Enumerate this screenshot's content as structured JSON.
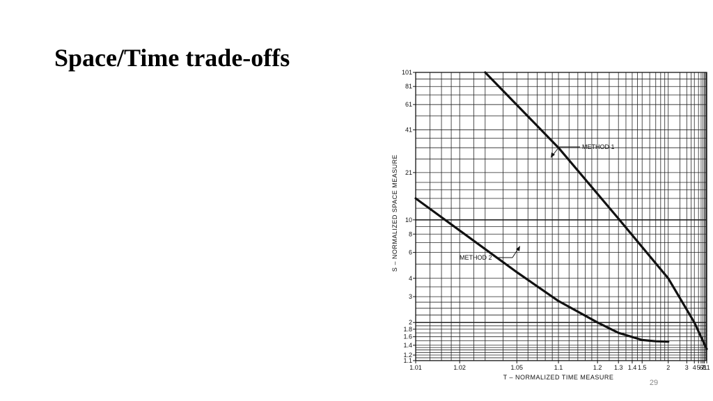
{
  "slide": {
    "title": "Space/Time trade-offs",
    "page_number": "29"
  },
  "colors": {
    "ink": "#111111",
    "background": "#ffffff",
    "page_number": "#888888"
  },
  "chart_data": {
    "type": "line",
    "xscale": "log-reciprocal",
    "yscale": "log",
    "grid": true,
    "xlabel": "T – NORMALIZED TIME MEASURE",
    "ylabel": "S – NORMALIZED SPACE MEASURE",
    "xlim": [
      1.01,
      11
    ],
    "ylim": [
      1.1,
      101
    ],
    "x_ticks": [
      {
        "value": 1.01,
        "label": "1.01"
      },
      {
        "value": 1.02,
        "label": "1.02"
      },
      {
        "value": 1.05,
        "label": "1.05"
      },
      {
        "value": 1.1,
        "label": "1.1"
      },
      {
        "value": 1.2,
        "label": "1.2"
      },
      {
        "value": 1.3,
        "label": "1.3"
      },
      {
        "value": 1.4,
        "label": "1.4"
      },
      {
        "value": 1.5,
        "label": "1.5"
      },
      {
        "value": 2,
        "label": "2"
      },
      {
        "value": 3,
        "label": "3"
      },
      {
        "value": 4,
        "label": "4"
      },
      {
        "value": 5,
        "label": "5"
      },
      {
        "value": 6,
        "label": "6"
      },
      {
        "value": 7,
        "label": "7"
      },
      {
        "value": 8,
        "label": "8"
      },
      {
        "value": 11,
        "label": "11"
      }
    ],
    "y_ticks": [
      {
        "value": 1.1,
        "label": "1.1"
      },
      {
        "value": 1.2,
        "label": "1.2"
      },
      {
        "value": 1.4,
        "label": "1.4"
      },
      {
        "value": 1.6,
        "label": "1.6"
      },
      {
        "value": 1.8,
        "label": "1.8"
      },
      {
        "value": 2,
        "label": "2"
      },
      {
        "value": 3,
        "label": "3"
      },
      {
        "value": 4,
        "label": "4"
      },
      {
        "value": 6,
        "label": "6"
      },
      {
        "value": 8,
        "label": "8"
      },
      {
        "value": 10,
        "label": "10"
      },
      {
        "value": 21,
        "label": "21"
      },
      {
        "value": 41,
        "label": "41"
      },
      {
        "value": 61,
        "label": "61"
      },
      {
        "value": 81,
        "label": "81"
      },
      {
        "value": 101,
        "label": "101"
      }
    ],
    "x_grid": [
      1.01,
      1.0125,
      1.015,
      1.0175,
      1.02,
      1.025,
      1.03,
      1.04,
      1.05,
      1.06,
      1.07,
      1.08,
      1.09,
      1.1,
      1.12,
      1.14,
      1.16,
      1.18,
      1.2,
      1.25,
      1.3,
      1.35,
      1.4,
      1.45,
      1.5,
      1.6,
      1.7,
      1.8,
      1.9,
      2,
      2.5,
      3,
      3.5,
      4,
      5,
      6,
      7,
      8,
      9,
      10,
      11
    ],
    "y_grid": [
      1.1,
      1.15,
      1.2,
      1.25,
      1.3,
      1.35,
      1.4,
      1.5,
      1.6,
      1.7,
      1.8,
      1.9,
      2,
      2.25,
      2.5,
      2.75,
      3,
      3.5,
      4,
      5,
      6,
      7,
      8,
      9,
      10,
      12,
      14,
      16,
      18,
      21,
      26,
      31,
      36,
      41,
      51,
      61,
      71,
      81,
      91,
      101
    ],
    "y_major": [
      2,
      10
    ],
    "series": [
      {
        "name": "METHOD 1",
        "x": [
          1.03,
          1.1,
          1.3,
          2,
          4,
          11
        ],
        "y": [
          101,
          31,
          10.2,
          4,
          2,
          1.32
        ]
      },
      {
        "name": "METHOD 2",
        "x": [
          1.01,
          1.05,
          1.1,
          1.2,
          1.3,
          1.5,
          1.7,
          2
        ],
        "y": [
          14,
          4.4,
          2.8,
          2,
          1.7,
          1.52,
          1.49,
          1.48
        ]
      }
    ]
  }
}
